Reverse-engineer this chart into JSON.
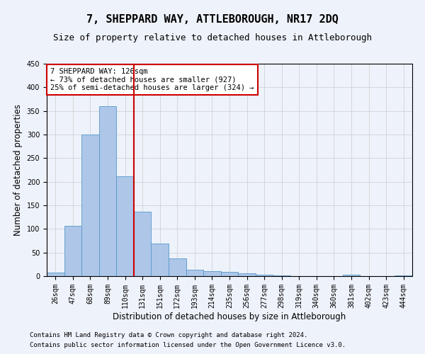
{
  "title": "7, SHEPPARD WAY, ATTLEBOROUGH, NR17 2DQ",
  "subtitle": "Size of property relative to detached houses in Attleborough",
  "xlabel": "Distribution of detached houses by size in Attleborough",
  "ylabel": "Number of detached properties",
  "footer_line1": "Contains HM Land Registry data © Crown copyright and database right 2024.",
  "footer_line2": "Contains public sector information licensed under the Open Government Licence v3.0.",
  "categories": [
    "26sqm",
    "47sqm",
    "68sqm",
    "89sqm",
    "110sqm",
    "131sqm",
    "151sqm",
    "172sqm",
    "193sqm",
    "214sqm",
    "235sqm",
    "256sqm",
    "277sqm",
    "298sqm",
    "319sqm",
    "340sqm",
    "360sqm",
    "381sqm",
    "402sqm",
    "423sqm",
    "444sqm"
  ],
  "values": [
    8,
    107,
    300,
    360,
    212,
    137,
    69,
    38,
    13,
    10,
    9,
    6,
    3,
    2,
    0,
    0,
    0,
    3,
    0,
    0,
    2
  ],
  "bar_color": "#aec6e8",
  "bar_edge_color": "#5599cc",
  "vline_x": 4.5,
  "vline_color": "#cc0000",
  "annotation_line1": "7 SHEPPARD WAY: 126sqm",
  "annotation_line2": "← 73% of detached houses are smaller (927)",
  "annotation_line3": "25% of semi-detached houses are larger (324) →",
  "annotation_box_color": "#ffffff",
  "annotation_box_edge": "#cc0000",
  "ylim": [
    0,
    450
  ],
  "yticks": [
    0,
    50,
    100,
    150,
    200,
    250,
    300,
    350,
    400,
    450
  ],
  "grid_color": "#cccccc",
  "background_color": "#eef2fa",
  "title_fontsize": 11,
  "subtitle_fontsize": 9,
  "label_fontsize": 8.5,
  "tick_fontsize": 7,
  "footer_fontsize": 6.5
}
